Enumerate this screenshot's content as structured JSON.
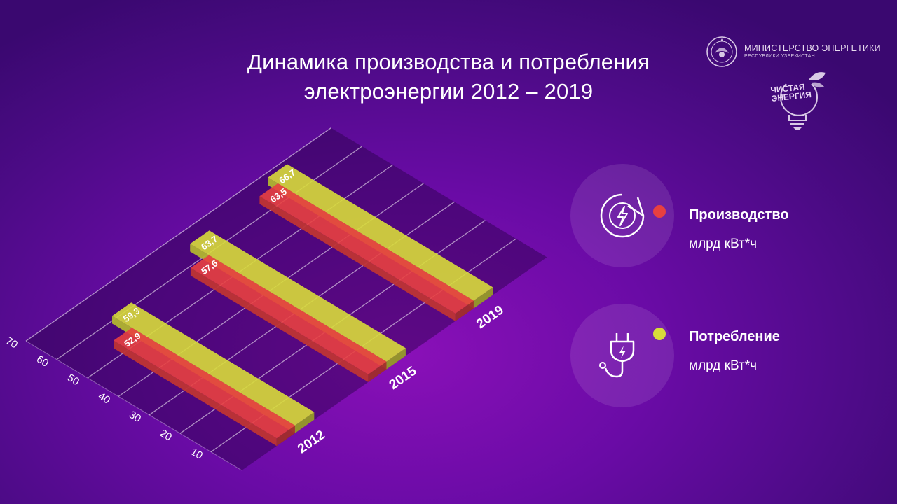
{
  "title": {
    "line1": "Динамика производства и потребления",
    "line2": "электроэнергии 2012 – 2019"
  },
  "logos": {
    "ministry_name": "МИНИСТЕРСТВО ЭНЕРГЕТИКИ",
    "ministry_sub": "РЕСПУБЛИКИ УЗБЕКИСТАН",
    "clean_energy_line1": "ЧИСТАЯ",
    "clean_energy_line2": "ЭНЕРГИЯ"
  },
  "legend": [
    {
      "name": "Производство",
      "unit": "млрд кВт*ч",
      "color": "#e84040",
      "icon": "energy-cycle-icon"
    },
    {
      "name": "Потребление",
      "unit": "млрд кВт*ч",
      "color": "#d8dc3a",
      "icon": "plug-icon"
    }
  ],
  "colors": {
    "production": "#e84040",
    "consumption": "#d8dc3a",
    "background": "#6a0ba6"
  },
  "chart_data": {
    "type": "bar",
    "categories": [
      "2012",
      "2015",
      "2019"
    ],
    "series": [
      {
        "name": "Производство",
        "values": [
          52.9,
          57.6,
          63.5
        ]
      },
      {
        "name": "Потребление",
        "values": [
          59.3,
          63.7,
          66.7
        ]
      }
    ],
    "value_labels": {
      "Производство": [
        "52,9",
        "57,6",
        "63,5"
      ],
      "Потребление": [
        "59,3",
        "63,7",
        "66,7"
      ]
    },
    "ytick_labels": [
      "10",
      "20",
      "30",
      "40",
      "50",
      "60",
      "70"
    ],
    "ylim": [
      0,
      70
    ],
    "grid": true,
    "legend_position": "right"
  }
}
